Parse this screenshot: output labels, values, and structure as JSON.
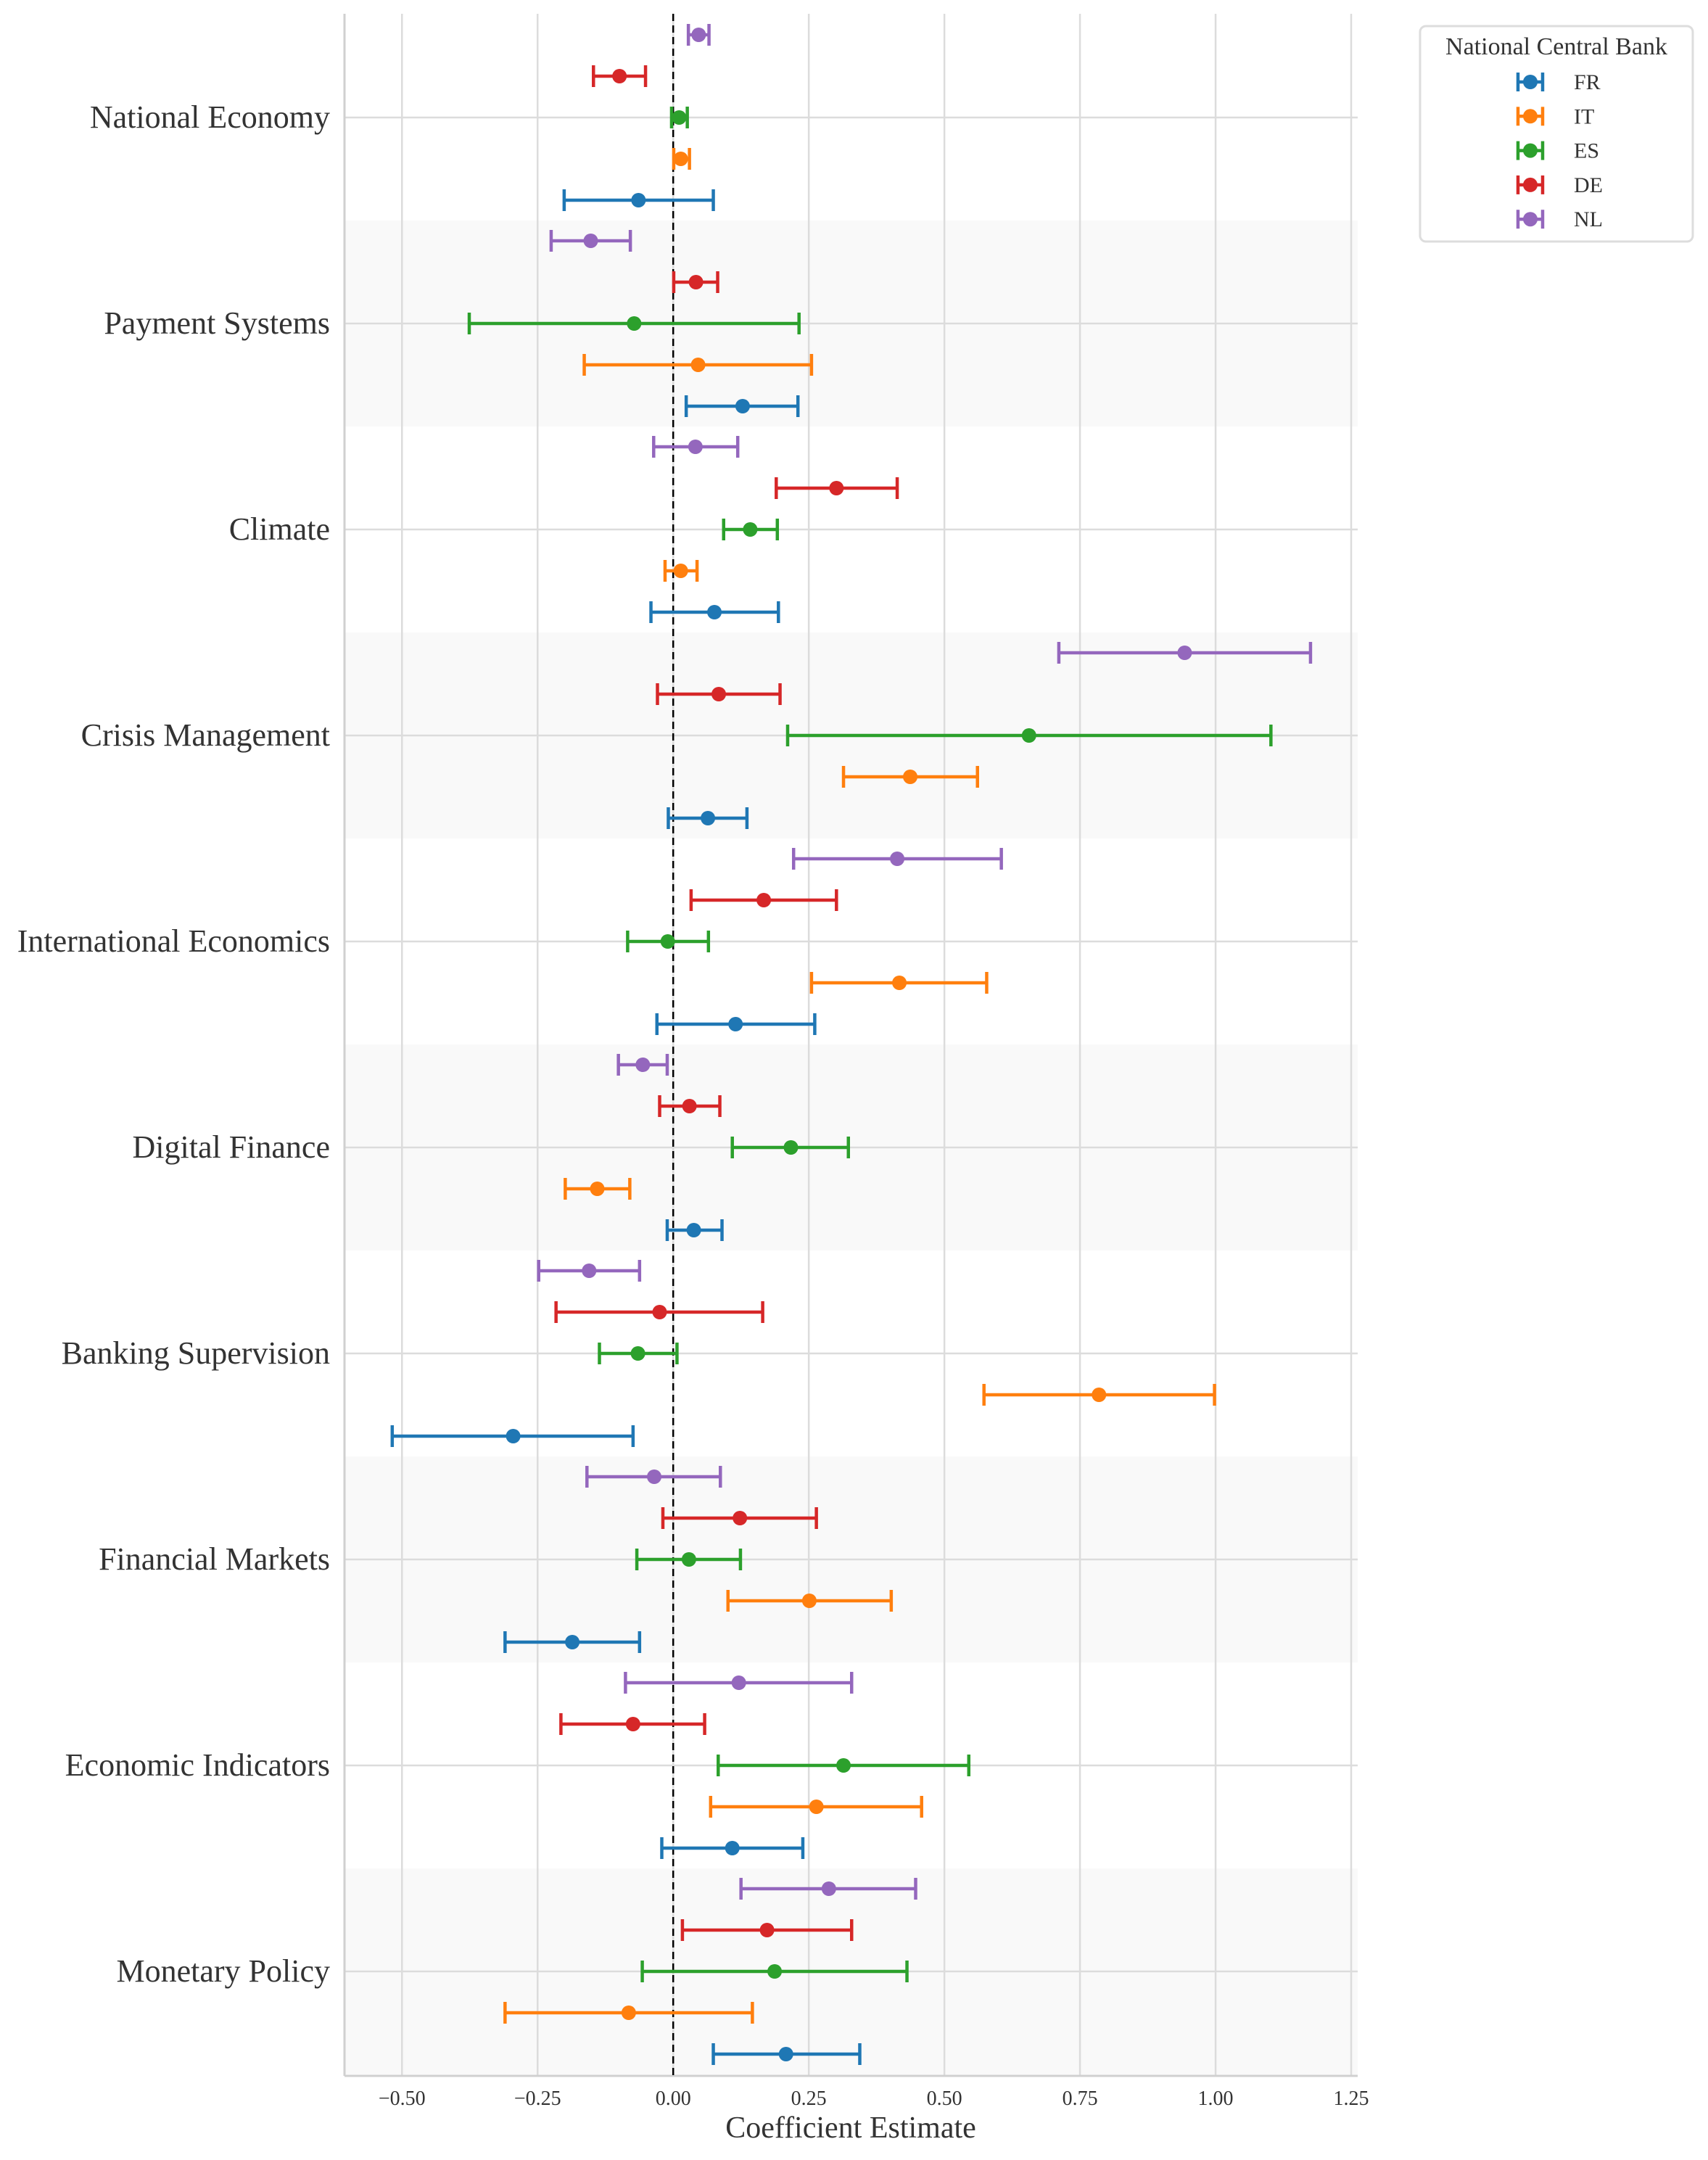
{
  "chart_data": {
    "type": "errorbar",
    "title": "",
    "xlabel": "Coefficient Estimate",
    "ylabel": "",
    "xlim": [
      -0.606,
      1.262
    ],
    "xticks": [
      -0.5,
      -0.25,
      0.0,
      0.25,
      0.5,
      0.75,
      1.0,
      1.25
    ],
    "xtick_labels": [
      "−0.50",
      "−0.25",
      "0.00",
      "0.25",
      "0.50",
      "0.75",
      "1.00",
      "1.25"
    ],
    "reference_line": {
      "x": 0.0,
      "style": "dashed",
      "color": "#000000"
    },
    "grid": true,
    "alternating_band_shading": true,
    "categories": [
      "National Economy",
      "Payment Systems",
      "Climate",
      "Crisis Management",
      "International Economics",
      "Digital Finance",
      "Banking Supervision",
      "Financial Markets",
      "Economic Indicators",
      "Monetary Policy"
    ],
    "legend": {
      "title": "National Central Bank",
      "placement": "outside-top-right",
      "entries": [
        "FR",
        "IT",
        "ES",
        "DE",
        "NL"
      ]
    },
    "series": [
      {
        "name": "FR",
        "color": "#1f77b4",
        "estimates": [
          -0.064,
          0.128,
          0.076,
          0.064,
          0.115,
          0.038,
          -0.295,
          -0.186,
          0.109,
          0.208
        ],
        "lower": [
          -0.201,
          0.024,
          -0.041,
          -0.009,
          -0.03,
          -0.011,
          -0.518,
          -0.31,
          -0.021,
          0.074
        ],
        "upper": [
          0.074,
          0.23,
          0.194,
          0.136,
          0.261,
          0.09,
          -0.074,
          -0.062,
          0.239,
          0.344
        ]
      },
      {
        "name": "IT",
        "color": "#ff7f0e",
        "estimates": [
          0.014,
          0.046,
          0.014,
          0.437,
          0.417,
          -0.14,
          0.785,
          0.251,
          0.264,
          -0.082
        ],
        "lower": [
          0.001,
          -0.164,
          -0.015,
          0.314,
          0.255,
          -0.199,
          0.573,
          0.101,
          0.069,
          -0.31
        ],
        "upper": [
          0.03,
          0.255,
          0.044,
          0.561,
          0.578,
          -0.08,
          0.998,
          0.402,
          0.458,
          0.146
        ]
      },
      {
        "name": "ES",
        "color": "#2ca02c",
        "estimates": [
          0.011,
          -0.072,
          0.142,
          0.656,
          -0.01,
          0.217,
          -0.065,
          0.029,
          0.314,
          0.187
        ],
        "lower": [
          -0.003,
          -0.376,
          0.093,
          0.211,
          -0.084,
          0.109,
          -0.136,
          -0.067,
          0.083,
          -0.057
        ],
        "upper": [
          0.026,
          0.232,
          0.192,
          1.102,
          0.065,
          0.323,
          0.007,
          0.124,
          0.545,
          0.431
        ]
      },
      {
        "name": "DE",
        "color": "#d62728",
        "estimates": [
          -0.099,
          0.042,
          0.301,
          0.084,
          0.167,
          0.03,
          -0.025,
          0.123,
          -0.074,
          0.173
        ],
        "lower": [
          -0.147,
          0.001,
          0.19,
          -0.029,
          0.033,
          -0.025,
          -0.216,
          -0.019,
          -0.207,
          0.017
        ],
        "upper": [
          -0.051,
          0.082,
          0.413,
          0.197,
          0.301,
          0.086,
          0.165,
          0.264,
          0.058,
          0.329
        ]
      },
      {
        "name": "NL",
        "color": "#9467bd",
        "estimates": [
          0.047,
          -0.152,
          0.041,
          0.943,
          0.413,
          -0.056,
          -0.155,
          -0.035,
          0.121,
          0.287
        ],
        "lower": [
          0.028,
          -0.225,
          -0.036,
          0.711,
          0.222,
          -0.101,
          -0.248,
          -0.159,
          -0.088,
          0.125
        ],
        "upper": [
          0.066,
          -0.079,
          0.119,
          1.175,
          0.605,
          -0.011,
          -0.062,
          0.087,
          0.329,
          0.447
        ]
      }
    ]
  }
}
